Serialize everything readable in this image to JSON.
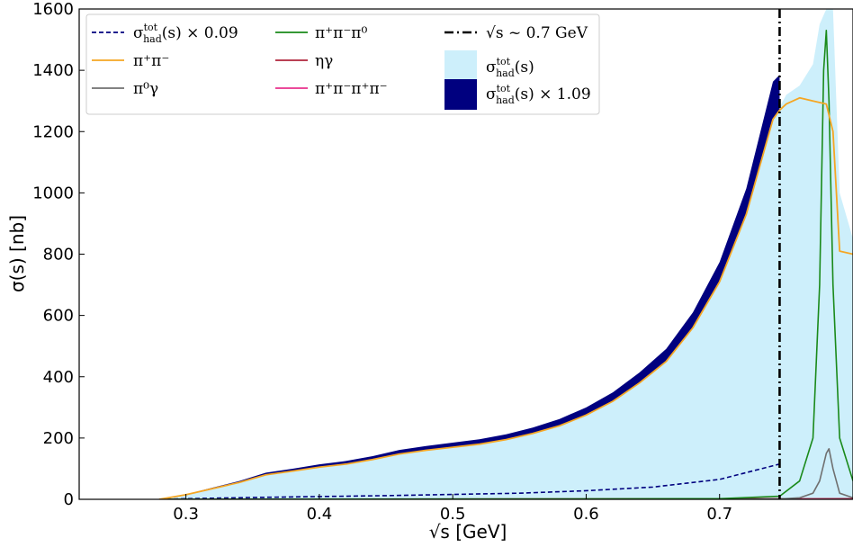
{
  "chart_data": {
    "type": "line",
    "xlabel": "√s [GeV]",
    "ylabel": "σ(s) [nb]",
    "xlim": [
      0.22,
      0.8
    ],
    "ylim": [
      0,
      1600
    ],
    "x_ticks": [
      0.3,
      0.4,
      0.5,
      0.6,
      0.7
    ],
    "y_ticks": [
      0,
      200,
      400,
      600,
      800,
      1000,
      1200,
      1400,
      1600
    ],
    "grid": false,
    "legend_position": "top-left",
    "vertical_line": {
      "x": 0.745,
      "label": "√s ~ 0.7 GeV",
      "color": "#000000"
    },
    "series": [
      {
        "name": "σhad^tot(s) × 0.09",
        "label_main": "σ",
        "label_sup": "tot",
        "label_sub": "had",
        "label_rest": "(s) × 0.09",
        "style": "dashed",
        "color": "#00007f",
        "x": [
          0.28,
          0.3,
          0.35,
          0.4,
          0.45,
          0.5,
          0.55,
          0.6,
          0.65,
          0.7,
          0.745
        ],
        "y": [
          0,
          2,
          6,
          9,
          12,
          16,
          20,
          28,
          40,
          65,
          115
        ]
      },
      {
        "name": "π⁺π⁻",
        "label_main": "π⁺π⁻",
        "style": "solid",
        "color": "#f5a623",
        "x": [
          0.28,
          0.3,
          0.32,
          0.34,
          0.36,
          0.38,
          0.4,
          0.42,
          0.44,
          0.46,
          0.48,
          0.5,
          0.52,
          0.54,
          0.56,
          0.58,
          0.6,
          0.62,
          0.64,
          0.66,
          0.68,
          0.7,
          0.72,
          0.74,
          0.745,
          0.75,
          0.76,
          0.77,
          0.78,
          0.785,
          0.79,
          0.8
        ],
        "y": [
          0,
          15,
          35,
          55,
          80,
          92,
          105,
          115,
          130,
          148,
          160,
          170,
          180,
          195,
          215,
          240,
          275,
          320,
          380,
          450,
          560,
          710,
          930,
          1240,
          1270,
          1290,
          1310,
          1300,
          1290,
          1200,
          810,
          800
        ]
      },
      {
        "name": "π⁰γ",
        "label_main": "π⁰γ",
        "style": "solid",
        "color": "#707070",
        "x": [
          0.28,
          0.7,
          0.745,
          0.76,
          0.77,
          0.775,
          0.78,
          0.782,
          0.785,
          0.79,
          0.8
        ],
        "y": [
          0,
          0,
          1,
          5,
          20,
          60,
          150,
          165,
          100,
          20,
          5
        ]
      },
      {
        "name": "π⁺π⁻π⁰",
        "label_main": "π⁺π⁻π⁰",
        "style": "solid",
        "color": "#1a8a1a",
        "x": [
          0.28,
          0.7,
          0.745,
          0.76,
          0.77,
          0.775,
          0.778,
          0.78,
          0.782,
          0.785,
          0.79,
          0.8
        ],
        "y": [
          0,
          2,
          10,
          60,
          200,
          700,
          1400,
          1530,
          1300,
          700,
          200,
          60
        ]
      },
      {
        "name": "ηγ",
        "label_main": "ηγ",
        "style": "solid",
        "color": "#b0243c",
        "x": [
          0.28,
          0.8
        ],
        "y": [
          0,
          2
        ]
      },
      {
        "name": "π⁺π⁻π⁺π⁻",
        "label_main": "π⁺π⁻π⁺π⁻",
        "style": "solid",
        "color": "#e8308c",
        "x": [
          0.28,
          0.8
        ],
        "y": [
          0,
          0
        ]
      }
    ],
    "fill_series": [
      {
        "name": "σhad^tot(s)",
        "label_main": "σ",
        "label_sup": "tot",
        "label_sub": "had",
        "label_rest": "(s)",
        "color": "#cdeffb",
        "x": [
          0.28,
          0.3,
          0.32,
          0.34,
          0.36,
          0.38,
          0.4,
          0.42,
          0.44,
          0.46,
          0.48,
          0.5,
          0.52,
          0.54,
          0.56,
          0.58,
          0.6,
          0.62,
          0.64,
          0.66,
          0.68,
          0.7,
          0.72,
          0.74,
          0.745,
          0.75,
          0.76,
          0.77,
          0.775,
          0.78,
          0.785,
          0.79,
          0.8
        ],
        "y": [
          0,
          15,
          35,
          55,
          80,
          92,
          105,
          115,
          130,
          148,
          160,
          170,
          180,
          195,
          215,
          240,
          275,
          320,
          380,
          450,
          560,
          710,
          930,
          1250,
          1280,
          1320,
          1350,
          1420,
          1550,
          1600,
          1600,
          1000,
          850
        ]
      },
      {
        "name": "σhad^tot(s) × 1.09",
        "label_main": "σ",
        "label_sup": "tot",
        "label_sub": "had",
        "label_rest": "(s) × 1.09",
        "color": "#00007f",
        "x": [
          0.28,
          0.3,
          0.32,
          0.34,
          0.36,
          0.38,
          0.4,
          0.42,
          0.44,
          0.46,
          0.48,
          0.5,
          0.52,
          0.54,
          0.56,
          0.58,
          0.6,
          0.62,
          0.64,
          0.66,
          0.68,
          0.7,
          0.72,
          0.74,
          0.745
        ],
        "y": [
          0,
          16,
          38,
          60,
          87,
          100,
          114,
          125,
          141,
          161,
          174,
          185,
          196,
          212,
          234,
          262,
          300,
          349,
          414,
          491,
          610,
          774,
          1014,
          1363,
          1385
        ]
      }
    ]
  }
}
